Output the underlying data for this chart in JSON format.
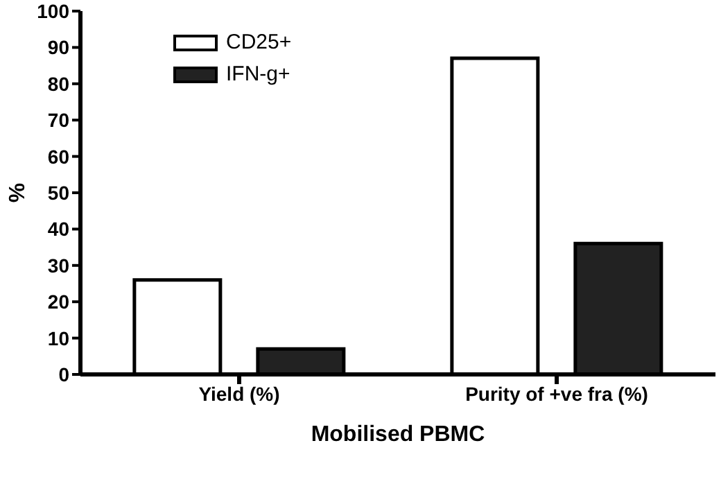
{
  "chart_data": {
    "type": "bar",
    "xlabel": "Mobilised PBMC",
    "ylabel": "%",
    "categories": [
      "Yield (%)",
      "Purity of +ve fra (%)"
    ],
    "series": [
      {
        "name": "CD25+",
        "color": "#ffffff",
        "values": [
          26,
          87
        ]
      },
      {
        "name": "IFN-g+",
        "color": "#222222",
        "values": [
          7,
          36
        ]
      }
    ],
    "ylim": [
      0,
      100
    ],
    "yticks": [
      0,
      10,
      20,
      30,
      40,
      50,
      60,
      70,
      80,
      90,
      100
    ],
    "grid": false,
    "legend": "top left"
  }
}
